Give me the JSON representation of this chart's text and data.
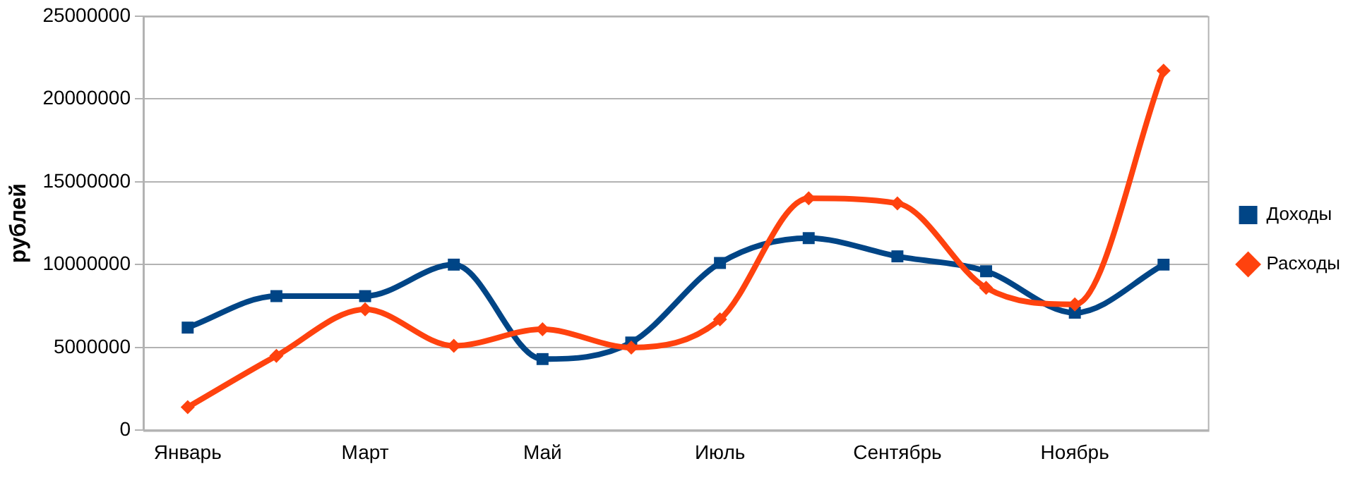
{
  "chart_data": {
    "type": "line",
    "ylabel": "рублей",
    "categories": [
      "Январь",
      null,
      "Март",
      null,
      "Май",
      null,
      "Июль",
      null,
      "Сентябрь",
      null,
      "Ноябрь",
      null
    ],
    "series": [
      {
        "name": "Доходы",
        "color": "#004586",
        "marker": "square",
        "values": [
          6200000,
          8100000,
          8100000,
          10000000,
          4300000,
          5300000,
          10100000,
          11600000,
          10500000,
          9600000,
          7100000,
          10000000
        ]
      },
      {
        "name": "Расходы",
        "color": "#ff420e",
        "marker": "diamond",
        "values": [
          1400000,
          4500000,
          7300000,
          5100000,
          6100000,
          5000000,
          6700000,
          14000000,
          13700000,
          8600000,
          7600000,
          21700000
        ]
      }
    ],
    "ylim": [
      0,
      25000000
    ],
    "yticks": [
      0,
      5000000,
      10000000,
      15000000,
      20000000,
      25000000
    ],
    "grid": "y",
    "legend": "right",
    "line_style": "solid"
  }
}
